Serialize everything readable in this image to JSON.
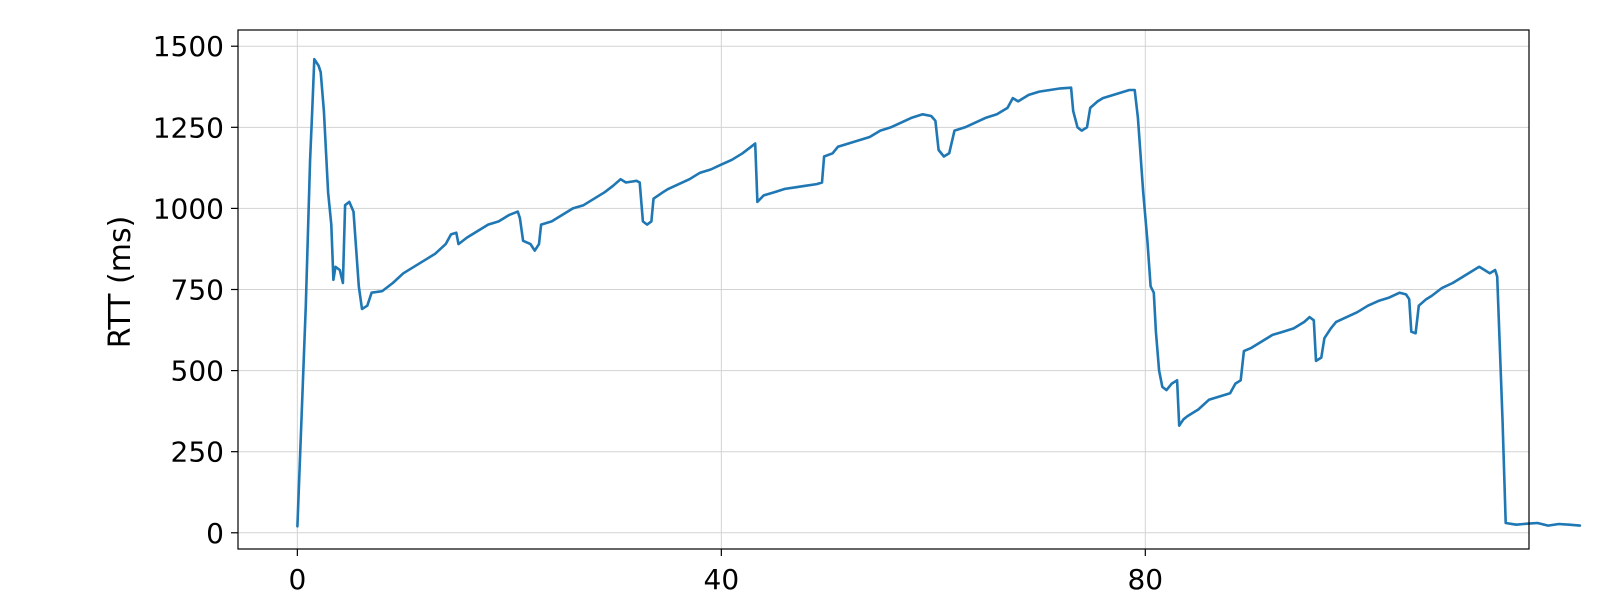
{
  "chart_data": {
    "type": "line",
    "title": "",
    "xlabel": "",
    "ylabel": "RTT (ms)",
    "xlim": [
      -5.6,
      116.2
    ],
    "ylim": [
      -50,
      1550
    ],
    "xticks": [
      0,
      40,
      80
    ],
    "yticks": [
      0,
      250,
      500,
      750,
      1000,
      1250,
      1500
    ],
    "grid": true,
    "line_color": "#1f77b4",
    "series": [
      {
        "values": [
          [
            0,
            20
          ],
          [
            0.8,
            700
          ],
          [
            1.2,
            1150
          ],
          [
            1.4,
            1300
          ],
          [
            1.6,
            1460
          ],
          [
            2.0,
            1440
          ],
          [
            2.2,
            1420
          ],
          [
            2.5,
            1300
          ],
          [
            2.9,
            1050
          ],
          [
            3.2,
            950
          ],
          [
            3.4,
            780
          ],
          [
            3.6,
            820
          ],
          [
            4.0,
            810
          ],
          [
            4.3,
            770
          ],
          [
            4.5,
            1010
          ],
          [
            4.9,
            1020
          ],
          [
            5.3,
            990
          ],
          [
            5.8,
            760
          ],
          [
            6.1,
            690
          ],
          [
            6.6,
            700
          ],
          [
            7.0,
            740
          ],
          [
            8.0,
            745
          ],
          [
            9.0,
            770
          ],
          [
            10.0,
            800
          ],
          [
            11.0,
            820
          ],
          [
            12.0,
            840
          ],
          [
            13.0,
            860
          ],
          [
            14.0,
            890
          ],
          [
            14.5,
            920
          ],
          [
            15.0,
            925
          ],
          [
            15.2,
            890
          ],
          [
            16.0,
            910
          ],
          [
            17.0,
            930
          ],
          [
            18.0,
            950
          ],
          [
            19.0,
            960
          ],
          [
            20.0,
            980
          ],
          [
            20.8,
            990
          ],
          [
            21.0,
            970
          ],
          [
            21.3,
            900
          ],
          [
            22.0,
            890
          ],
          [
            22.4,
            870
          ],
          [
            22.8,
            890
          ],
          [
            23.0,
            950
          ],
          [
            24.0,
            960
          ],
          [
            25.0,
            980
          ],
          [
            26.0,
            1000
          ],
          [
            27.0,
            1010
          ],
          [
            28.0,
            1030
          ],
          [
            29.0,
            1050
          ],
          [
            29.8,
            1070
          ],
          [
            30.5,
            1090
          ],
          [
            31.0,
            1080
          ],
          [
            32.0,
            1085
          ],
          [
            32.3,
            1080
          ],
          [
            32.6,
            960
          ],
          [
            33.0,
            950
          ],
          [
            33.4,
            960
          ],
          [
            33.6,
            1030
          ],
          [
            34.5,
            1050
          ],
          [
            35.0,
            1060
          ],
          [
            36.0,
            1075
          ],
          [
            37.0,
            1090
          ],
          [
            38.0,
            1110
          ],
          [
            39.0,
            1120
          ],
          [
            40.0,
            1135
          ],
          [
            41.0,
            1150
          ],
          [
            42.0,
            1170
          ],
          [
            42.8,
            1190
          ],
          [
            43.2,
            1200
          ],
          [
            43.4,
            1020
          ],
          [
            44.0,
            1040
          ],
          [
            45.0,
            1050
          ],
          [
            46.0,
            1060
          ],
          [
            47.0,
            1065
          ],
          [
            48.0,
            1070
          ],
          [
            49.0,
            1075
          ],
          [
            49.5,
            1080
          ],
          [
            49.7,
            1160
          ],
          [
            50.5,
            1170
          ],
          [
            51.0,
            1190
          ],
          [
            52.0,
            1200
          ],
          [
            53.0,
            1210
          ],
          [
            54.0,
            1220
          ],
          [
            55.0,
            1240
          ],
          [
            56.0,
            1250
          ],
          [
            57.0,
            1265
          ],
          [
            58.0,
            1280
          ],
          [
            59.0,
            1290
          ],
          [
            59.8,
            1285
          ],
          [
            60.2,
            1270
          ],
          [
            60.5,
            1180
          ],
          [
            61.0,
            1160
          ],
          [
            61.5,
            1170
          ],
          [
            62.0,
            1240
          ],
          [
            63.0,
            1250
          ],
          [
            64.0,
            1265
          ],
          [
            65.0,
            1280
          ],
          [
            66.0,
            1290
          ],
          [
            67.0,
            1310
          ],
          [
            67.5,
            1340
          ],
          [
            68.0,
            1330
          ],
          [
            69.0,
            1350
          ],
          [
            70.0,
            1360
          ],
          [
            71.0,
            1365
          ],
          [
            72.0,
            1370
          ],
          [
            73.0,
            1372
          ],
          [
            73.2,
            1300
          ],
          [
            73.6,
            1250
          ],
          [
            74.0,
            1240
          ],
          [
            74.5,
            1250
          ],
          [
            74.8,
            1310
          ],
          [
            75.5,
            1330
          ],
          [
            76.0,
            1340
          ],
          [
            77.0,
            1350
          ],
          [
            78.0,
            1360
          ],
          [
            78.5,
            1365
          ],
          [
            79.0,
            1365
          ],
          [
            79.3,
            1280
          ],
          [
            79.8,
            1050
          ],
          [
            80.2,
            900
          ],
          [
            80.5,
            760
          ],
          [
            80.8,
            740
          ],
          [
            81.0,
            620
          ],
          [
            81.3,
            500
          ],
          [
            81.6,
            450
          ],
          [
            82.0,
            440
          ],
          [
            82.5,
            460
          ],
          [
            83.0,
            470
          ],
          [
            83.2,
            330
          ],
          [
            83.6,
            350
          ],
          [
            84.0,
            360
          ],
          [
            85.0,
            380
          ],
          [
            86.0,
            410
          ],
          [
            87.0,
            420
          ],
          [
            88.0,
            430
          ],
          [
            88.5,
            460
          ],
          [
            89.0,
            470
          ],
          [
            89.3,
            560
          ],
          [
            90.0,
            570
          ],
          [
            91.0,
            590
          ],
          [
            92.0,
            610
          ],
          [
            93.0,
            620
          ],
          [
            94.0,
            630
          ],
          [
            95.0,
            650
          ],
          [
            95.5,
            665
          ],
          [
            95.9,
            655
          ],
          [
            96.1,
            530
          ],
          [
            96.6,
            540
          ],
          [
            96.9,
            600
          ],
          [
            97.5,
            630
          ],
          [
            98.0,
            650
          ],
          [
            99.0,
            665
          ],
          [
            100.0,
            680
          ],
          [
            101.0,
            700
          ],
          [
            102.0,
            715
          ],
          [
            103.0,
            725
          ],
          [
            104.0,
            740
          ],
          [
            104.6,
            735
          ],
          [
            104.9,
            720
          ],
          [
            105.1,
            620
          ],
          [
            105.5,
            615
          ],
          [
            105.8,
            700
          ],
          [
            106.5,
            720
          ],
          [
            107.0,
            730
          ],
          [
            108.0,
            755
          ],
          [
            109.0,
            770
          ],
          [
            110.0,
            790
          ],
          [
            111.0,
            810
          ],
          [
            111.5,
            820
          ],
          [
            112.0,
            810
          ],
          [
            112.5,
            800
          ],
          [
            113.0,
            810
          ],
          [
            113.2,
            790
          ],
          [
            113.7,
            350
          ],
          [
            114.0,
            30
          ],
          [
            115.0,
            25
          ],
          [
            116.0,
            28
          ],
          [
            117.0,
            30
          ],
          [
            118.0,
            22
          ],
          [
            119.0,
            27
          ],
          [
            120.0,
            25
          ],
          [
            121.0,
            22
          ]
        ]
      }
    ]
  }
}
